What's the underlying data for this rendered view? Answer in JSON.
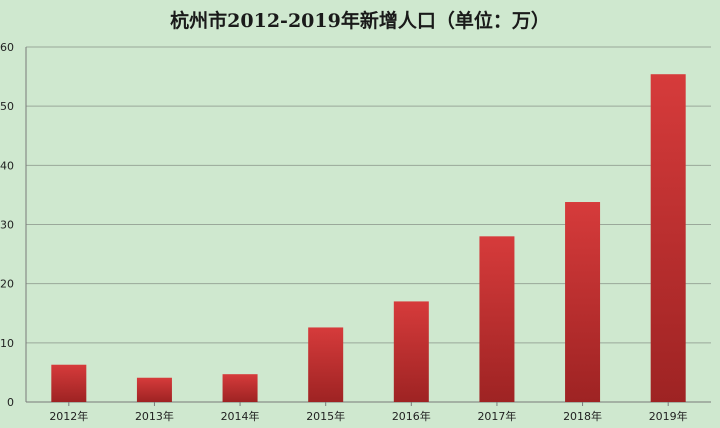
{
  "chart_data": {
    "type": "bar",
    "title": "杭州市2012-2019年新增人口（单位：万）",
    "categories": [
      "2012年",
      "2013年",
      "2014年",
      "2015年",
      "2016年",
      "2017年",
      "2018年",
      "2019年"
    ],
    "values": [
      6.3,
      4.1,
      4.7,
      12.6,
      17.0,
      28.0,
      33.8,
      55.4
    ],
    "xlabel": "",
    "ylabel": "",
    "ylim": [
      0,
      60
    ],
    "yticks": [
      0,
      10,
      20,
      30,
      40,
      50,
      60
    ],
    "grid": true,
    "legend": "none",
    "colors": {
      "background": "#cfe8cf",
      "bar_top": "#d63b3b",
      "bar_bottom": "#9e2323",
      "grid": "#9aa89a",
      "axis": "#7a7a7a"
    }
  }
}
